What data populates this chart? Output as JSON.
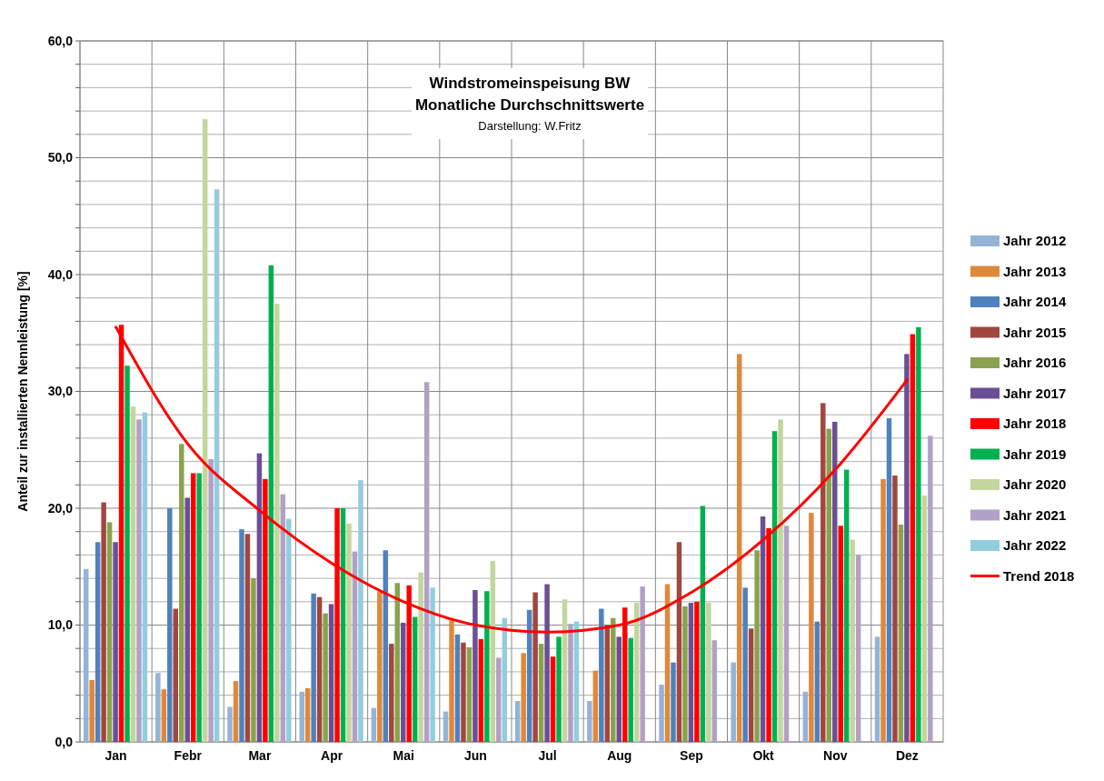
{
  "chart_data": {
    "type": "bar",
    "title": "Windstromeinspeisung BW",
    "subtitle": "Monatliche Durchschnittswerte",
    "annotations": [
      "Darstellung: W.Fritz"
    ],
    "ylabel": "Anteil zur installierten Nennleistung [%]",
    "categories": [
      "Jan",
      "Febr",
      "Mar",
      "Apr",
      "Mai",
      "Jun",
      "Jul",
      "Aug",
      "Sep",
      "Okt",
      "Nov",
      "Dez"
    ],
    "ylim": [
      0,
      60
    ],
    "yticks": [
      {
        "value": 0,
        "label": "0,0"
      },
      {
        "value": 2,
        "label": null
      },
      {
        "value": 4,
        "label": null
      },
      {
        "value": 6,
        "label": null
      },
      {
        "value": 8,
        "label": null
      },
      {
        "value": 10,
        "label": "10,0"
      },
      {
        "value": 12,
        "label": null
      },
      {
        "value": 14,
        "label": null
      },
      {
        "value": 16,
        "label": null
      },
      {
        "value": 18,
        "label": null
      },
      {
        "value": 20,
        "label": "20,0"
      },
      {
        "value": 22,
        "label": null
      },
      {
        "value": 24,
        "label": null
      },
      {
        "value": 26,
        "label": null
      },
      {
        "value": 28,
        "label": null
      },
      {
        "value": 30,
        "label": "30,0"
      },
      {
        "value": 32,
        "label": null
      },
      {
        "value": 34,
        "label": null
      },
      {
        "value": 36,
        "label": null
      },
      {
        "value": 38,
        "label": null
      },
      {
        "value": 40,
        "label": "40,0"
      },
      {
        "value": 42,
        "label": null
      },
      {
        "value": 44,
        "label": null
      },
      {
        "value": 46,
        "label": null
      },
      {
        "value": 48,
        "label": null
      },
      {
        "value": 50,
        "label": "50,0"
      },
      {
        "value": 52,
        "label": null
      },
      {
        "value": 54,
        "label": null
      },
      {
        "value": 56,
        "label": null
      },
      {
        "value": 58,
        "label": null
      },
      {
        "value": 60,
        "label": "60,0"
      }
    ],
    "grid": true,
    "legend": "right",
    "series": [
      {
        "name": "Jahr 2012",
        "color": "#95b3d7",
        "values": [
          14.8,
          5.9,
          3.0,
          4.3,
          2.9,
          2.6,
          3.5,
          3.5,
          4.9,
          6.8,
          4.3,
          9.0
        ]
      },
      {
        "name": "Jahr 2013",
        "color": "#e0883a",
        "values": [
          5.3,
          4.5,
          5.2,
          4.6,
          12.9,
          10.4,
          7.6,
          6.1,
          13.5,
          33.2,
          19.6,
          22.5
        ]
      },
      {
        "name": "Jahr 2014",
        "color": "#4f81bd",
        "values": [
          17.1,
          20.0,
          18.2,
          12.7,
          16.4,
          9.2,
          11.3,
          11.4,
          6.8,
          13.2,
          10.3,
          27.7
        ]
      },
      {
        "name": "Jahr 2015",
        "color": "#a0473f",
        "values": [
          20.5,
          11.4,
          17.8,
          12.4,
          8.4,
          8.5,
          12.8,
          10.0,
          17.1,
          9.7,
          29.0,
          22.8
        ]
      },
      {
        "name": "Jahr 2016",
        "color": "#8aa24e",
        "values": [
          18.8,
          25.5,
          14.0,
          11.0,
          13.6,
          8.1,
          8.4,
          10.6,
          11.6,
          16.4,
          26.8,
          18.6
        ]
      },
      {
        "name": "Jahr 2017",
        "color": "#6b4f95",
        "values": [
          17.1,
          20.9,
          24.7,
          11.8,
          10.2,
          13.0,
          13.5,
          9.0,
          11.9,
          19.3,
          27.4,
          33.2
        ]
      },
      {
        "name": "Jahr 2018",
        "color": "#ff0000",
        "values": [
          35.7,
          23.0,
          22.5,
          20.0,
          13.4,
          8.8,
          7.3,
          11.5,
          12.0,
          18.3,
          18.5,
          34.9
        ]
      },
      {
        "name": "Jahr 2019",
        "color": "#00b050",
        "values": [
          32.2,
          23.0,
          40.8,
          20.0,
          10.7,
          12.9,
          9.0,
          8.9,
          20.2,
          26.6,
          23.3,
          35.5
        ]
      },
      {
        "name": "Jahr 2020",
        "color": "#c3d69b",
        "values": [
          28.7,
          53.3,
          37.5,
          18.7,
          14.5,
          15.5,
          12.2,
          11.9,
          11.9,
          27.6,
          17.3,
          21.1
        ]
      },
      {
        "name": "Jahr 2021",
        "color": "#b1a0c7",
        "values": [
          27.6,
          24.2,
          21.2,
          16.3,
          30.8,
          7.2,
          10.1,
          13.3,
          8.7,
          18.5,
          16.0,
          26.2
        ]
      },
      {
        "name": "Jahr 2022",
        "color": "#92cddc",
        "values": [
          28.2,
          47.3,
          19.1,
          22.4,
          13.2,
          10.6,
          10.3,
          null,
          null,
          null,
          null,
          null
        ]
      },
      {
        "name": "Trend 2018",
        "type": "line",
        "color": "#ff0000",
        "values": [
          35.5,
          25.5,
          19.8,
          15.3,
          12.0,
          10.0,
          9.4,
          10.0,
          12.8,
          17.3,
          23.3,
          31.0
        ]
      }
    ]
  }
}
